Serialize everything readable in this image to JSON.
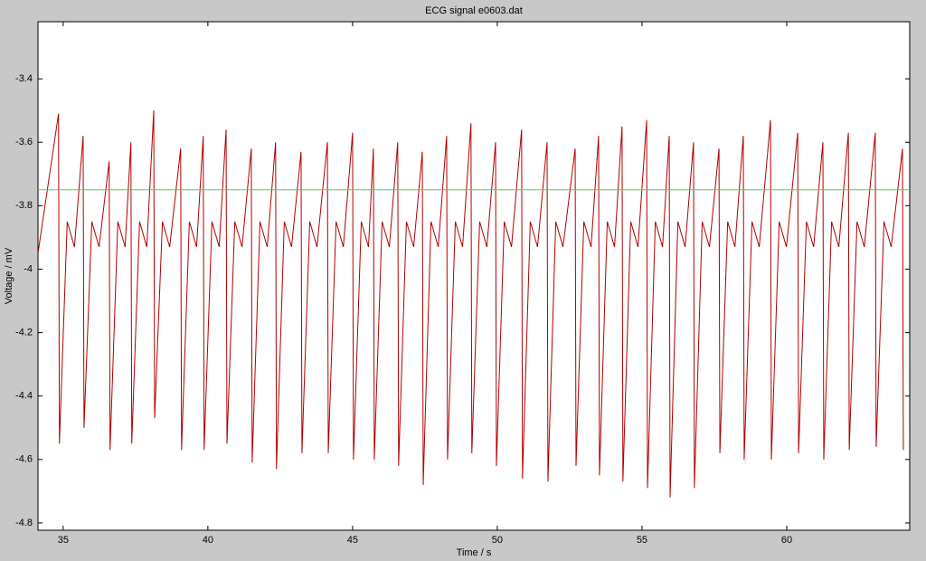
{
  "chart_data": {
    "type": "line",
    "title": "ECG signal e0603.dat",
    "xlabel": "Time / s",
    "ylabel": "Voltage / mV",
    "xlim": [
      34.13,
      64.25
    ],
    "ylim": [
      -4.823,
      -3.22
    ],
    "xticks": [
      35,
      40,
      45,
      50,
      55,
      60
    ],
    "yticks": [
      -3.4,
      -3.6,
      -3.8,
      -4,
      -4.2,
      -4.4,
      -4.6,
      -4.8
    ],
    "grid": false,
    "series": [
      {
        "color": "#b00000",
        "x": [
          34.13,
          34.84,
          34.87,
          35.14,
          35.39,
          35.69,
          35.72,
          35.99,
          36.24,
          36.59,
          36.62,
          36.89,
          37.14,
          37.34,
          37.37,
          37.64,
          37.89,
          38.13,
          38.16,
          38.43,
          38.68,
          39.06,
          39.09,
          39.36,
          39.61,
          39.84,
          39.87,
          40.14,
          40.39,
          40.63,
          40.66,
          40.93,
          41.18,
          41.5,
          41.53,
          41.8,
          42.05,
          42.34,
          42.37,
          42.64,
          42.89,
          43.22,
          43.25,
          43.52,
          43.77,
          44.13,
          44.16,
          44.43,
          44.68,
          45,
          45.03,
          45.3,
          45.55,
          45.72,
          45.75,
          46.02,
          46.27,
          46.56,
          46.59,
          46.86,
          47.11,
          47.41,
          47.44,
          47.71,
          47.96,
          48.25,
          48.28,
          48.55,
          48.8,
          49.09,
          49.12,
          49.39,
          49.64,
          49.94,
          49.97,
          50.24,
          50.49,
          50.84,
          50.87,
          51.14,
          51.39,
          51.72,
          51.75,
          52.02,
          52.27,
          52.69,
          52.72,
          52.99,
          53.24,
          53.5,
          53.53,
          53.8,
          54.05,
          54.31,
          54.34,
          54.61,
          54.86,
          55.16,
          55.19,
          55.46,
          55.71,
          55.94,
          55.97,
          56.24,
          56.49,
          56.78,
          56.81,
          57.08,
          57.33,
          57.66,
          57.69,
          57.96,
          58.21,
          58.5,
          58.53,
          58.8,
          59.05,
          59.44,
          59.47,
          59.74,
          59.99,
          60.38,
          60.41,
          60.68,
          60.93,
          61.25,
          61.28,
          61.55,
          61.8,
          62.13,
          62.16,
          62.43,
          62.68,
          63.06,
          63.09,
          63.36,
          63.61,
          64,
          64.03
        ],
        "values": [
          -3.95,
          -3.51,
          -4.55,
          -3.85,
          -3.93,
          -3.58,
          -4.5,
          -3.85,
          -3.93,
          -3.66,
          -4.57,
          -3.85,
          -3.93,
          -3.6,
          -4.55,
          -3.85,
          -3.93,
          -3.5,
          -4.47,
          -3.85,
          -3.93,
          -3.62,
          -4.57,
          -3.85,
          -3.93,
          -3.58,
          -4.57,
          -3.85,
          -3.93,
          -3.56,
          -4.55,
          -3.85,
          -3.93,
          -3.62,
          -4.61,
          -3.85,
          -3.93,
          -3.6,
          -4.63,
          -3.85,
          -3.93,
          -3.63,
          -4.58,
          -3.85,
          -3.93,
          -3.6,
          -4.58,
          -3.85,
          -3.93,
          -3.57,
          -4.6,
          -3.85,
          -3.93,
          -3.62,
          -4.6,
          -3.85,
          -3.93,
          -3.6,
          -4.62,
          -3.85,
          -3.93,
          -3.63,
          -4.68,
          -3.85,
          -3.93,
          -3.58,
          -4.6,
          -3.85,
          -3.93,
          -3.54,
          -4.58,
          -3.85,
          -3.93,
          -3.6,
          -4.62,
          -3.85,
          -3.93,
          -3.56,
          -4.66,
          -3.85,
          -3.93,
          -3.6,
          -4.67,
          -3.85,
          -3.93,
          -3.62,
          -4.62,
          -3.85,
          -3.93,
          -3.58,
          -4.65,
          -3.85,
          -3.93,
          -3.55,
          -4.67,
          -3.85,
          -3.93,
          -3.53,
          -4.69,
          -3.85,
          -3.93,
          -3.58,
          -4.72,
          -3.85,
          -3.93,
          -3.6,
          -4.69,
          -3.85,
          -3.93,
          -3.62,
          -4.58,
          -3.85,
          -3.93,
          -3.58,
          -4.6,
          -3.85,
          -3.93,
          -3.53,
          -4.6,
          -3.85,
          -3.93,
          -3.57,
          -4.58,
          -3.85,
          -3.93,
          -3.6,
          -4.6,
          -3.85,
          -3.93,
          -3.57,
          -4.57,
          -3.85,
          -3.93,
          -3.57,
          -4.56,
          -3.85,
          -3.93,
          -3.62,
          -4.57
        ]
      },
      {
        "color": "#5cc85c",
        "x": [
          34.13,
          64.25
        ],
        "values": [
          -3.75,
          -3.75
        ]
      }
    ]
  }
}
